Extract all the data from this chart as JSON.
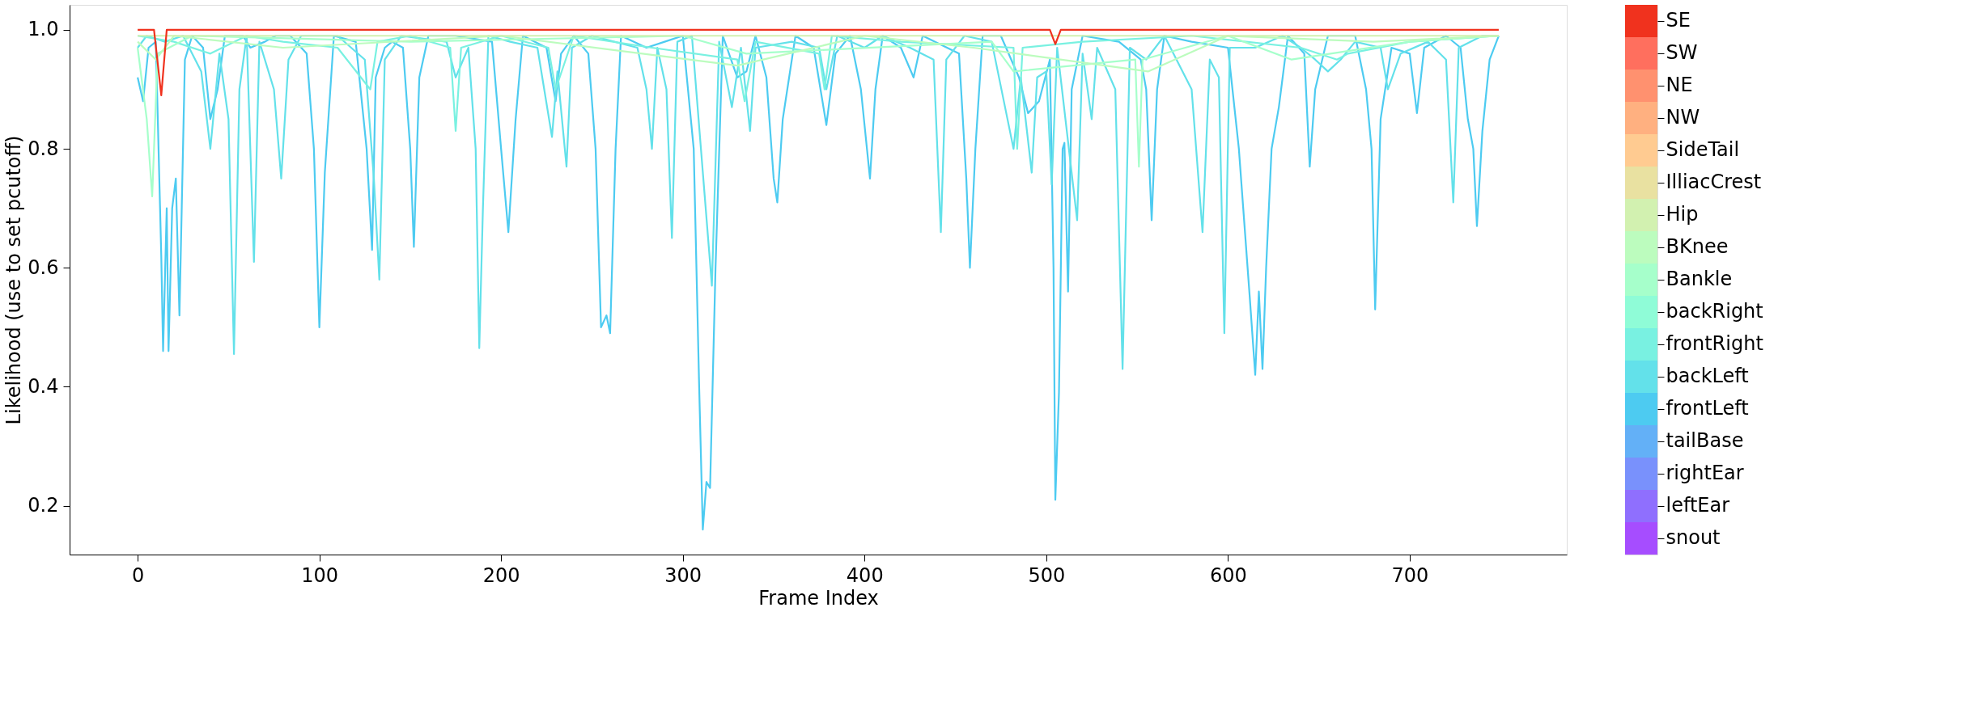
{
  "chart_data": {
    "type": "line",
    "xlabel": "Frame Index",
    "ylabel": "Likelihood (use to set pcutoff)",
    "xlim": [
      -37.45,
      786.45
    ],
    "ylim": [
      0.118,
      1.042
    ],
    "xticks": [
      0,
      100,
      200,
      300,
      400,
      500,
      600,
      700
    ],
    "yticks": [
      0.2,
      0.4,
      0.6,
      0.8,
      {
        "value": 1.0,
        "label": "1.0"
      }
    ],
    "grid": false,
    "legend": "right",
    "marker": "none",
    "series": [
      {
        "name": "snout",
        "color": "#a64dff"
      },
      {
        "name": "leftEar",
        "color": "#8f6ffe"
      },
      {
        "name": "rightEar",
        "color": "#7991fc"
      },
      {
        "name": "tailBase",
        "color": "#63b0f7"
      },
      {
        "name": "frontLeft",
        "color": "#4dcbf1",
        "x": [
          0,
          3,
          6,
          10,
          13,
          14,
          16,
          17,
          19,
          21,
          23,
          26,
          30,
          36,
          40,
          44,
          48,
          58,
          62,
          70,
          76,
          84,
          93,
          97,
          100,
          103,
          108,
          120,
          126,
          129,
          131,
          136,
          140,
          146,
          150,
          152,
          155,
          160,
          175,
          195,
          200,
          204,
          208,
          212,
          225,
          230,
          233,
          240,
          248,
          252,
          255,
          258,
          260,
          263,
          266,
          280,
          290,
          300,
          306,
          309,
          311,
          313,
          315,
          318,
          322,
          330,
          335,
          340,
          346,
          350,
          352,
          355,
          362,
          372,
          379,
          384,
          392,
          398,
          403,
          406,
          410,
          420,
          427,
          432,
          452,
          456,
          458,
          461,
          465,
          475,
          485,
          490,
          496,
          502,
          504,
          505,
          507,
          509,
          510,
          512,
          514,
          520,
          540,
          552,
          555,
          558,
          561,
          565,
          580,
          600,
          606,
          612,
          615,
          617,
          619,
          621,
          624,
          628,
          633,
          642,
          645,
          648,
          655,
          670,
          676,
          679,
          681,
          684,
          690,
          700,
          704,
          708,
          720,
          728,
          732,
          735,
          737,
          740,
          744,
          749
        ],
        "values": [
          0.92,
          0.88,
          0.97,
          0.98,
          0.62,
          0.46,
          0.7,
          0.46,
          0.7,
          0.75,
          0.52,
          0.95,
          0.99,
          0.97,
          0.85,
          0.9,
          0.99,
          0.99,
          0.97,
          0.98,
          0.99,
          0.99,
          0.96,
          0.8,
          0.5,
          0.76,
          0.99,
          0.98,
          0.8,
          0.63,
          0.92,
          0.97,
          0.98,
          0.97,
          0.8,
          0.635,
          0.92,
          0.99,
          0.99,
          0.98,
          0.8,
          0.66,
          0.85,
          0.99,
          0.97,
          0.88,
          0.96,
          0.99,
          0.96,
          0.8,
          0.5,
          0.52,
          0.49,
          0.8,
          0.99,
          0.97,
          0.98,
          0.99,
          0.8,
          0.4,
          0.16,
          0.24,
          0.23,
          0.6,
          0.99,
          0.92,
          0.93,
          0.99,
          0.92,
          0.75,
          0.71,
          0.85,
          0.99,
          0.97,
          0.84,
          0.96,
          0.99,
          0.9,
          0.75,
          0.9,
          0.99,
          0.97,
          0.92,
          0.99,
          0.96,
          0.75,
          0.6,
          0.8,
          0.99,
          0.99,
          0.92,
          0.86,
          0.88,
          0.95,
          0.6,
          0.21,
          0.39,
          0.8,
          0.81,
          0.56,
          0.9,
          0.99,
          0.98,
          0.95,
          0.9,
          0.68,
          0.9,
          0.99,
          0.98,
          0.97,
          0.8,
          0.55,
          0.42,
          0.56,
          0.43,
          0.6,
          0.8,
          0.87,
          0.99,
          0.96,
          0.77,
          0.9,
          0.99,
          0.99,
          0.9,
          0.8,
          0.53,
          0.85,
          0.97,
          0.96,
          0.86,
          0.97,
          0.99,
          0.97,
          0.85,
          0.8,
          0.67,
          0.83,
          0.95,
          0.99
        ]
      },
      {
        "name": "backLeft",
        "color": "#63e1ea",
        "x": [
          0,
          5,
          15,
          25,
          35,
          40,
          45,
          50,
          53,
          56,
          60,
          64,
          67,
          75,
          79,
          83,
          90,
          110,
          125,
          130,
          133,
          136,
          145,
          170,
          175,
          182,
          186,
          188,
          190,
          193,
          205,
          220,
          228,
          231,
          236,
          239,
          250,
          275,
          280,
          283,
          286,
          291,
          294,
          297,
          305,
          316,
          320,
          327,
          332,
          337,
          340,
          360,
          375,
          379,
          385,
          400,
          410,
          425,
          438,
          442,
          445,
          455,
          470,
          482,
          486,
          492,
          495,
          500,
          503,
          506,
          517,
          520,
          525,
          528,
          538,
          542,
          546,
          555,
          565,
          580,
          586,
          590,
          595,
          598,
          601,
          615,
          630,
          640,
          648,
          655,
          662,
          670,
          684,
          688,
          695,
          710,
          720,
          724,
          727,
          740,
          749
        ],
        "values": [
          0.97,
          0.99,
          0.98,
          0.99,
          0.93,
          0.8,
          0.96,
          0.85,
          0.455,
          0.9,
          0.99,
          0.61,
          0.98,
          0.9,
          0.75,
          0.95,
          0.99,
          0.99,
          0.95,
          0.75,
          0.58,
          0.95,
          0.99,
          0.98,
          0.92,
          0.97,
          0.8,
          0.465,
          0.7,
          0.99,
          0.98,
          0.97,
          0.82,
          0.93,
          0.77,
          0.97,
          0.99,
          0.97,
          0.9,
          0.8,
          0.97,
          0.9,
          0.65,
          0.98,
          0.99,
          0.57,
          0.98,
          0.87,
          0.97,
          0.83,
          0.97,
          0.98,
          0.97,
          0.9,
          0.99,
          0.97,
          0.99,
          0.97,
          0.95,
          0.66,
          0.95,
          0.99,
          0.98,
          0.8,
          0.92,
          0.76,
          0.92,
          0.93,
          0.74,
          0.97,
          0.68,
          0.96,
          0.85,
          0.97,
          0.9,
          0.43,
          0.97,
          0.95,
          0.99,
          0.9,
          0.66,
          0.95,
          0.92,
          0.49,
          0.97,
          0.97,
          0.99,
          0.97,
          0.95,
          0.93,
          0.95,
          0.98,
          0.97,
          0.9,
          0.96,
          0.98,
          0.95,
          0.71,
          0.97,
          0.99,
          0.99
        ]
      },
      {
        "name": "frontRight",
        "color": "#79f1e1",
        "x": [
          0,
          20,
          40,
          60,
          80,
          110,
          128,
          132,
          150,
          172,
          175,
          178,
          200,
          226,
          230,
          240,
          283,
          330,
          334,
          340,
          375,
          378,
          382,
          420,
          482,
          484,
          487,
          520,
          580,
          640,
          660,
          666,
          700,
          749
        ],
        "values": [
          0.99,
          0.98,
          0.96,
          0.99,
          0.98,
          0.97,
          0.9,
          0.98,
          0.99,
          0.97,
          0.83,
          0.97,
          0.99,
          0.97,
          0.9,
          0.99,
          0.97,
          0.95,
          0.88,
          0.98,
          0.96,
          0.9,
          0.99,
          0.98,
          0.97,
          0.8,
          0.97,
          0.98,
          0.99,
          0.97,
          0.95,
          0.96,
          0.98,
          0.99
        ]
      },
      {
        "name": "backRight",
        "color": "#8ffcd7"
      },
      {
        "name": "Bankle",
        "color": "#a6ffcb",
        "x": [
          0,
          5,
          8,
          11,
          30,
          150,
          300,
          335,
          470,
          482,
          549,
          551,
          553,
          600,
          635,
          700,
          749
        ],
        "values": [
          0.97,
          0.85,
          0.72,
          0.96,
          0.99,
          0.98,
          0.99,
          0.96,
          0.98,
          0.93,
          0.95,
          0.77,
          0.95,
          0.99,
          0.95,
          0.98,
          0.99
        ]
      },
      {
        "name": "BKnee",
        "color": "#bcfcbe",
        "x": [
          0,
          10,
          20,
          80,
          200,
          330,
          400,
          460,
          556,
          600,
          680,
          749
        ],
        "values": [
          0.98,
          0.95,
          0.99,
          0.97,
          0.99,
          0.94,
          0.99,
          0.97,
          0.93,
          0.99,
          0.98,
          0.99
        ]
      },
      {
        "name": "Hip",
        "color": "#d2f1b0",
        "x": [
          0,
          375,
          749
        ],
        "values": [
          0.99,
          0.99,
          0.99
        ]
      },
      {
        "name": "IlliacCrest",
        "color": "#e9e1a1"
      },
      {
        "name": "SideTail",
        "color": "#ffcb91"
      },
      {
        "name": "NW",
        "color": "#ffb080"
      },
      {
        "name": "NE",
        "color": "#ff916f"
      },
      {
        "name": "SW",
        "color": "#ff6f5e"
      },
      {
        "name": "SE",
        "color": "#f0321e",
        "x": [
          0,
          9,
          13,
          16,
          502,
          505,
          508,
          749
        ],
        "values": [
          1.0,
          1.0,
          0.89,
          1.0,
          1.0,
          0.976,
          1.0,
          1.0
        ]
      }
    ]
  }
}
